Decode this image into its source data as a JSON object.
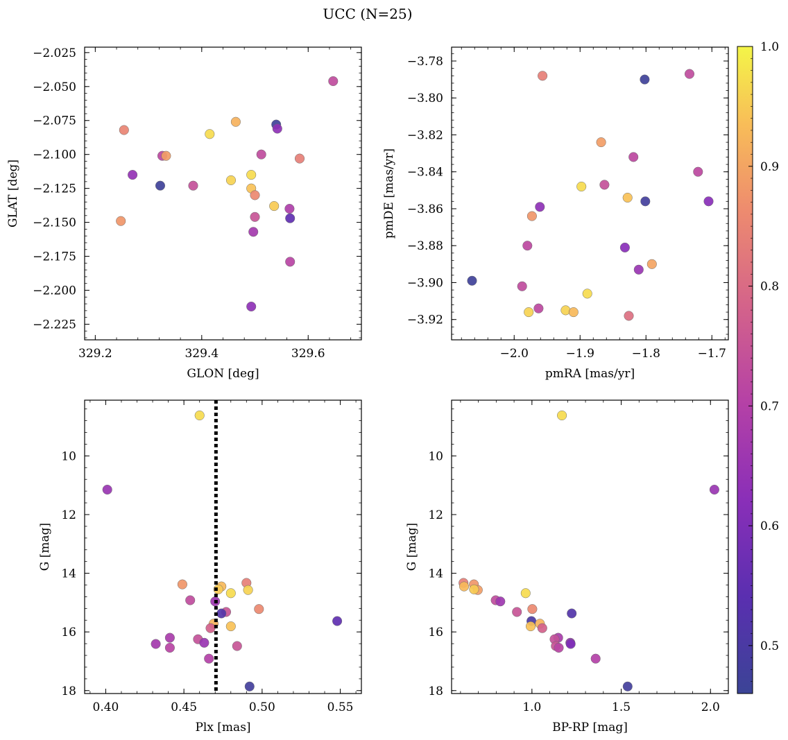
{
  "title": "UCC (N=25)",
  "colormap": "plasma",
  "colorbar": {
    "min": 0.46,
    "max": 1.0,
    "ticks": [
      "0.5",
      "0.6",
      "0.7",
      "0.8",
      "0.9",
      "1.0"
    ],
    "tick_values": [
      0.5,
      0.6,
      0.7,
      0.8,
      0.9,
      1.0
    ]
  },
  "chart_data": [
    {
      "type": "scatter",
      "xlabel": "GLON [deg]",
      "ylabel": "GLAT [deg]",
      "xlim": [
        329.18,
        329.7
      ],
      "ylim": [
        -2.2365,
        -2.021
      ],
      "x_ticks": [
        329.2,
        329.4,
        329.6
      ],
      "x_tick_labels": [
        "329.2",
        "329.4",
        "329.6"
      ],
      "y_ticks": [
        -2.025,
        -2.05,
        -2.075,
        -2.1,
        -2.125,
        -2.15,
        -2.175,
        -2.2,
        -2.225
      ],
      "y_tick_labels": [
        "−2.025",
        "−2.050",
        "−2.075",
        "−2.100",
        "−2.125",
        "−2.150",
        "−2.175",
        "−2.200",
        "−2.225"
      ],
      "points": [
        {
          "x": 329.647,
          "y": -2.046,
          "c": 0.73
        },
        {
          "x": 329.254,
          "y": -2.082,
          "c": 0.85
        },
        {
          "x": 329.464,
          "y": -2.076,
          "c": 0.92
        },
        {
          "x": 329.54,
          "y": -2.078,
          "c": 0.47
        },
        {
          "x": 329.542,
          "y": -2.081,
          "c": 0.63
        },
        {
          "x": 329.415,
          "y": -2.085,
          "c": 0.97
        },
        {
          "x": 329.326,
          "y": -2.101,
          "c": 0.72
        },
        {
          "x": 329.333,
          "y": -2.101,
          "c": 0.89
        },
        {
          "x": 329.512,
          "y": -2.1,
          "c": 0.73
        },
        {
          "x": 329.584,
          "y": -2.103,
          "c": 0.84
        },
        {
          "x": 329.27,
          "y": -2.115,
          "c": 0.64
        },
        {
          "x": 329.493,
          "y": -2.115,
          "c": 0.97
        },
        {
          "x": 329.455,
          "y": -2.119,
          "c": 0.96
        },
        {
          "x": 329.322,
          "y": -2.123,
          "c": 0.47
        },
        {
          "x": 329.384,
          "y": -2.123,
          "c": 0.74
        },
        {
          "x": 329.493,
          "y": -2.125,
          "c": 0.94
        },
        {
          "x": 329.5,
          "y": -2.13,
          "c": 0.86
        },
        {
          "x": 329.536,
          "y": -2.138,
          "c": 0.95
        },
        {
          "x": 329.565,
          "y": -2.14,
          "c": 0.69
        },
        {
          "x": 329.5,
          "y": -2.146,
          "c": 0.75
        },
        {
          "x": 329.566,
          "y": -2.147,
          "c": 0.55
        },
        {
          "x": 329.248,
          "y": -2.149,
          "c": 0.88
        },
        {
          "x": 329.497,
          "y": -2.157,
          "c": 0.67
        },
        {
          "x": 329.566,
          "y": -2.179,
          "c": 0.71
        },
        {
          "x": 329.493,
          "y": -2.212,
          "c": 0.63
        }
      ]
    },
    {
      "type": "scatter",
      "xlabel": "pmRA [mas/yr]",
      "ylabel": "pmDE [mas/yr]",
      "xlim": [
        -2.095,
        -1.675
      ],
      "ylim": [
        -3.931,
        -3.7725
      ],
      "x_ticks": [
        -2.0,
        -1.9,
        -1.8,
        -1.7
      ],
      "x_tick_labels": [
        "−2.0",
        "−1.9",
        "−1.8",
        "−1.7"
      ],
      "y_ticks": [
        -3.78,
        -3.8,
        -3.82,
        -3.84,
        -3.86,
        -3.88,
        -3.9,
        -3.92
      ],
      "y_tick_labels": [
        "−3.78",
        "−3.80",
        "−3.82",
        "−3.84",
        "−3.86",
        "−3.88",
        "−3.90",
        "−3.92"
      ],
      "points": [
        {
          "x": -1.957,
          "y": -3.788,
          "c": 0.84
        },
        {
          "x": -1.734,
          "y": -3.787,
          "c": 0.73
        },
        {
          "x": -1.802,
          "y": -3.79,
          "c": 0.47
        },
        {
          "x": -1.868,
          "y": -3.824,
          "c": 0.89
        },
        {
          "x": -1.819,
          "y": -3.832,
          "c": 0.72
        },
        {
          "x": -1.721,
          "y": -3.84,
          "c": 0.72
        },
        {
          "x": -1.898,
          "y": -3.848,
          "c": 0.97
        },
        {
          "x": -1.863,
          "y": -3.847,
          "c": 0.74
        },
        {
          "x": -1.828,
          "y": -3.854,
          "c": 0.94
        },
        {
          "x": -1.801,
          "y": -3.856,
          "c": 0.48
        },
        {
          "x": -1.705,
          "y": -3.856,
          "c": 0.62
        },
        {
          "x": -1.961,
          "y": -3.859,
          "c": 0.63
        },
        {
          "x": -1.973,
          "y": -3.864,
          "c": 0.88
        },
        {
          "x": -1.98,
          "y": -3.88,
          "c": 0.72
        },
        {
          "x": -1.832,
          "y": -3.881,
          "c": 0.62
        },
        {
          "x": -1.791,
          "y": -3.89,
          "c": 0.9
        },
        {
          "x": -1.811,
          "y": -3.893,
          "c": 0.65
        },
        {
          "x": -2.064,
          "y": -3.899,
          "c": 0.47
        },
        {
          "x": -1.988,
          "y": -3.902,
          "c": 0.73
        },
        {
          "x": -1.889,
          "y": -3.906,
          "c": 0.97
        },
        {
          "x": -1.963,
          "y": -3.914,
          "c": 0.72
        },
        {
          "x": -1.922,
          "y": -3.915,
          "c": 0.96
        },
        {
          "x": -1.91,
          "y": -3.916,
          "c": 0.93
        },
        {
          "x": -1.978,
          "y": -3.916,
          "c": 0.96
        },
        {
          "x": -1.826,
          "y": -3.918,
          "c": 0.81
        }
      ]
    },
    {
      "type": "scatter",
      "xlabel": "Plx [mas]",
      "ylabel": "G [mag]",
      "xlim": [
        0.3865,
        0.5635
      ],
      "ylim": [
        18.1,
        8.1
      ],
      "y_inverted": true,
      "x_ticks": [
        0.4,
        0.45,
        0.5,
        0.55
      ],
      "x_tick_labels": [
        "0.40",
        "0.45",
        "0.50",
        "0.55"
      ],
      "y_ticks": [
        10,
        12,
        14,
        16,
        18
      ],
      "y_tick_labels": [
        "10",
        "12",
        "14",
        "16",
        "18"
      ],
      "vline": {
        "x": 0.4705,
        "style": "dotted"
      },
      "points": [
        {
          "x": 0.46,
          "y": 8.62,
          "c": 0.97
        },
        {
          "x": 0.401,
          "y": 11.15,
          "c": 0.65
        },
        {
          "x": 0.49,
          "y": 14.33,
          "c": 0.84
        },
        {
          "x": 0.449,
          "y": 14.38,
          "c": 0.88
        },
        {
          "x": 0.474,
          "y": 14.45,
          "c": 0.93
        },
        {
          "x": 0.491,
          "y": 14.57,
          "c": 0.96
        },
        {
          "x": 0.472,
          "y": 14.55,
          "c": 0.95
        },
        {
          "x": 0.48,
          "y": 14.68,
          "c": 0.97
        },
        {
          "x": 0.454,
          "y": 14.92,
          "c": 0.73
        },
        {
          "x": 0.47,
          "y": 14.96,
          "c": 0.66
        },
        {
          "x": 0.498,
          "y": 15.22,
          "c": 0.86
        },
        {
          "x": 0.477,
          "y": 15.32,
          "c": 0.75
        },
        {
          "x": 0.474,
          "y": 15.37,
          "c": 0.52
        },
        {
          "x": 0.548,
          "y": 15.63,
          "c": 0.55
        },
        {
          "x": 0.469,
          "y": 15.72,
          "c": 0.92
        },
        {
          "x": 0.48,
          "y": 15.81,
          "c": 0.94
        },
        {
          "x": 0.467,
          "y": 15.87,
          "c": 0.78
        },
        {
          "x": 0.441,
          "y": 16.2,
          "c": 0.68
        },
        {
          "x": 0.459,
          "y": 16.25,
          "c": 0.74
        },
        {
          "x": 0.463,
          "y": 16.37,
          "c": 0.65
        },
        {
          "x": 0.432,
          "y": 16.41,
          "c": 0.67
        },
        {
          "x": 0.484,
          "y": 16.48,
          "c": 0.75
        },
        {
          "x": 0.441,
          "y": 16.54,
          "c": 0.71
        },
        {
          "x": 0.466,
          "y": 16.91,
          "c": 0.7
        },
        {
          "x": 0.492,
          "y": 17.86,
          "c": 0.48
        }
      ]
    },
    {
      "type": "scatter",
      "xlabel": "BP-RP [mag]",
      "ylabel": "G [mag]",
      "xlim": [
        0.55,
        2.1
      ],
      "ylim": [
        18.1,
        8.1
      ],
      "y_inverted": true,
      "x_ticks": [
        1.0,
        1.5,
        2.0
      ],
      "x_tick_labels": [
        "1.0",
        "1.5",
        "2.0"
      ],
      "y_ticks": [
        10,
        12,
        14,
        16,
        18
      ],
      "y_tick_labels": [
        "10",
        "12",
        "14",
        "16",
        "18"
      ],
      "points": [
        {
          "x": 1.168,
          "y": 8.62,
          "c": 0.97
        },
        {
          "x": 2.022,
          "y": 11.15,
          "c": 0.65
        },
        {
          "x": 0.617,
          "y": 14.33,
          "c": 0.84
        },
        {
          "x": 0.675,
          "y": 14.38,
          "c": 0.88
        },
        {
          "x": 0.62,
          "y": 14.45,
          "c": 0.93
        },
        {
          "x": 0.697,
          "y": 14.57,
          "c": 0.89
        },
        {
          "x": 0.676,
          "y": 14.55,
          "c": 0.95
        },
        {
          "x": 0.965,
          "y": 14.68,
          "c": 0.97
        },
        {
          "x": 0.797,
          "y": 14.92,
          "c": 0.73
        },
        {
          "x": 0.823,
          "y": 14.96,
          "c": 0.66
        },
        {
          "x": 1.002,
          "y": 15.22,
          "c": 0.86
        },
        {
          "x": 0.916,
          "y": 15.32,
          "c": 0.75
        },
        {
          "x": 1.223,
          "y": 15.37,
          "c": 0.52
        },
        {
          "x": 0.997,
          "y": 15.63,
          "c": 0.5
        },
        {
          "x": 1.045,
          "y": 15.72,
          "c": 0.92
        },
        {
          "x": 0.993,
          "y": 15.81,
          "c": 0.94
        },
        {
          "x": 1.058,
          "y": 15.87,
          "c": 0.78
        },
        {
          "x": 1.147,
          "y": 16.2,
          "c": 0.68
        },
        {
          "x": 1.127,
          "y": 16.25,
          "c": 0.74
        },
        {
          "x": 1.215,
          "y": 16.37,
          "c": 0.65
        },
        {
          "x": 1.217,
          "y": 16.41,
          "c": 0.6
        },
        {
          "x": 1.134,
          "y": 16.48,
          "c": 0.75
        },
        {
          "x": 1.15,
          "y": 16.54,
          "c": 0.71
        },
        {
          "x": 1.357,
          "y": 16.91,
          "c": 0.7
        },
        {
          "x": 1.536,
          "y": 17.86,
          "c": 0.48
        }
      ]
    }
  ]
}
